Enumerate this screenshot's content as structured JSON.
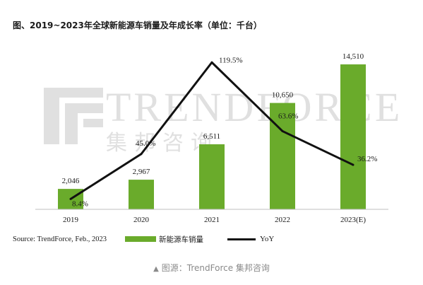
{
  "chart_title": "图、2019~2023年全球新能源车销量及年成长率（单位：千台）",
  "watermark": {
    "en": "TRENDFORCE",
    "cn": "集邦咨询"
  },
  "legend": {
    "source": "Source: TrendForce, Feb., 2023",
    "bar_label": "新能源车销量",
    "line_label": "YoY"
  },
  "caption": {
    "icon": "triangle-up-icon",
    "icon_glyph": "▲",
    "text": "图源：TrendForce 集邦咨询"
  },
  "colors": {
    "bar": "#6aab2b",
    "line": "#111111",
    "watermark": "#d6d6d6"
  },
  "chart_data": {
    "type": "bar",
    "title": "图、2019~2023年全球新能源车销量及年成长率（单位：千台）",
    "xlabel": "",
    "ylabel": "",
    "categories": [
      "2019",
      "2020",
      "2021",
      "2022",
      "2023(E)"
    ],
    "series": [
      {
        "name": "新能源车销量",
        "type": "bar",
        "values": [
          2046,
          2967,
          6511,
          10650,
          14510
        ],
        "labels": [
          "2,046",
          "2,967",
          "6,511",
          "10,650",
          "14,510"
        ]
      },
      {
        "name": "YoY",
        "type": "line",
        "values": [
          8.4,
          45.0,
          119.5,
          63.6,
          36.2
        ],
        "labels": [
          "8.4%",
          "45.0%",
          "119.5%",
          "63.6%",
          "36.2%"
        ]
      }
    ],
    "ylim": [
      0,
      16000
    ],
    "y2lim": [
      0,
      130
    ],
    "grid": false,
    "legend_position": "bottom"
  }
}
